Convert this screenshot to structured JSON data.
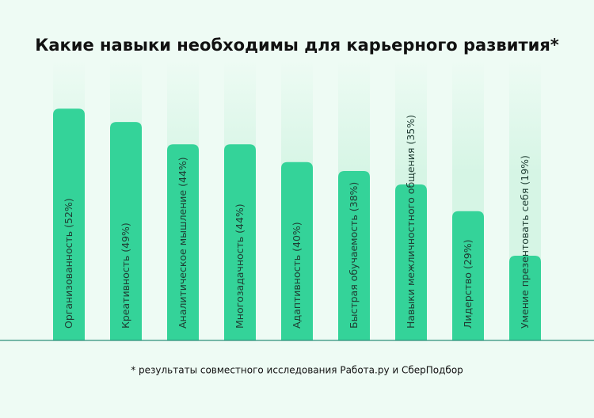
{
  "chart_data": {
    "type": "bar",
    "title": "Какие навыки необходимы для карьерного развития*",
    "categories": [
      "Организованность",
      "Креативность",
      "Аналитическое мышление",
      "Многозадачность",
      "Адаптивность",
      "Быстрая обучаемость",
      "Навыки межличностного общения",
      "Лидерство",
      "Умение презентовать себя"
    ],
    "values": [
      52,
      49,
      44,
      44,
      40,
      38,
      35,
      29,
      19
    ],
    "value_labels": [
      "(52%)",
      "(49%)",
      "(44%)",
      "(44%)",
      "(40%)",
      "(38%)",
      "(35%)",
      "(29%)",
      "(19%)"
    ],
    "color": "#34d399",
    "footnote": "* результаты совместного исследования Работа.ру и СберПодбор"
  }
}
